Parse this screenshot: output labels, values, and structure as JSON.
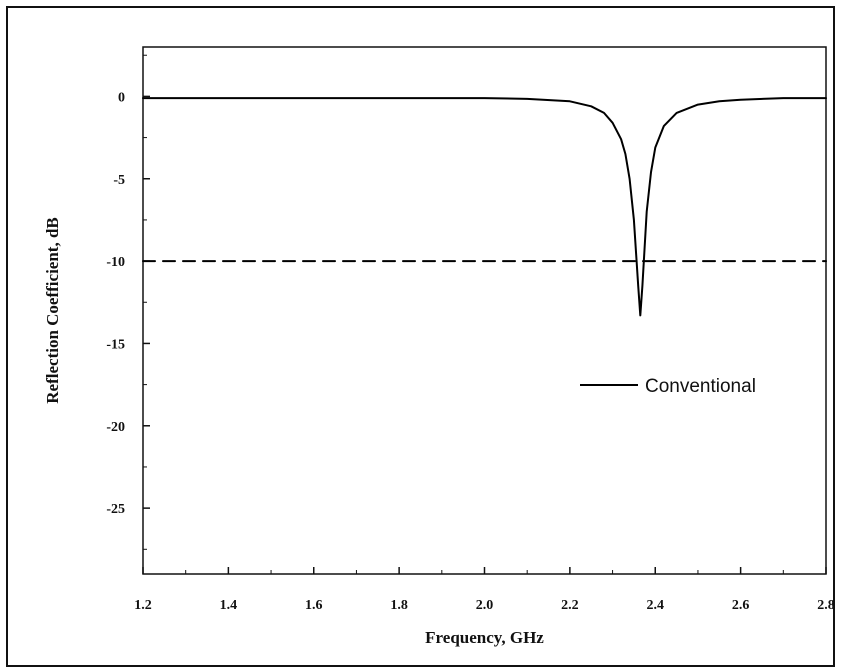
{
  "chart_data": {
    "type": "line",
    "title": "",
    "xlabel": "Frequency, GHz",
    "ylabel": "Reflection Coefficient, dB",
    "xlim": [
      1.2,
      2.8
    ],
    "ylim": [
      -29,
      3
    ],
    "xticks": [
      1.2,
      1.4,
      1.6,
      1.8,
      2.0,
      2.2,
      2.4,
      2.6,
      2.8
    ],
    "xtick_labels": [
      "1.2",
      "1.4",
      "1.6",
      "1.8",
      "2.0",
      "2.2",
      "2.4",
      "2.6",
      "2.8"
    ],
    "yticks": [
      0,
      -5,
      -10,
      -15,
      -20,
      -25
    ],
    "ytick_labels": [
      "0",
      "-5",
      "-10",
      "-15",
      "-20",
      "-25"
    ],
    "grid": false,
    "legend_position": "center-right",
    "series": [
      {
        "name": "Conventional",
        "color": "#000000",
        "x": [
          1.2,
          1.4,
          1.6,
          1.8,
          2.0,
          2.1,
          2.2,
          2.25,
          2.28,
          2.3,
          2.32,
          2.33,
          2.34,
          2.35,
          2.36,
          2.365,
          2.37,
          2.38,
          2.39,
          2.4,
          2.42,
          2.45,
          2.5,
          2.55,
          2.6,
          2.7,
          2.8
        ],
        "y": [
          -0.1,
          -0.1,
          -0.1,
          -0.1,
          -0.1,
          -0.15,
          -0.3,
          -0.6,
          -1.0,
          -1.6,
          -2.6,
          -3.5,
          -5.0,
          -7.5,
          -11.5,
          -13.3,
          -11.5,
          -7.0,
          -4.6,
          -3.1,
          -1.8,
          -1.0,
          -0.5,
          -0.3,
          -0.2,
          -0.1,
          -0.1
        ]
      },
      {
        "name": "",
        "color": "#000000",
        "dash": "dashed",
        "x": [
          1.2,
          2.8
        ],
        "y": [
          -10,
          -10
        ]
      }
    ]
  }
}
